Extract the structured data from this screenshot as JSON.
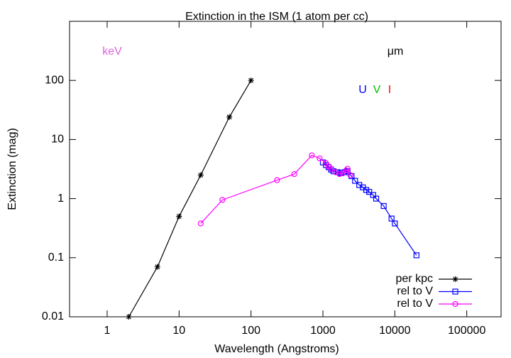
{
  "chart_data": {
    "type": "line",
    "title": "Extinction in the ISM (1 atom per cc)",
    "x_label": "Wavelength (Angstroms)",
    "y_label": "Extinction (mag)",
    "log_x": true,
    "log_y": true,
    "xlim": [
      0.3,
      300000
    ],
    "ylim": [
      0.01,
      1000
    ],
    "xticks": [
      1,
      10,
      100,
      1000,
      10000,
      100000
    ],
    "yticks": [
      0.01,
      0.1,
      1,
      10,
      100
    ],
    "legend": "bottom right",
    "annotations": [
      {
        "text": "keV",
        "color": "#e060e0"
      },
      {
        "text": "μm",
        "color": "#000000"
      },
      {
        "text": "U",
        "color": "#0000ff"
      },
      {
        "text": "V",
        "color": "#00c000"
      },
      {
        "text": "I",
        "color": "#ff0000"
      }
    ],
    "series": [
      {
        "name": "per kpc",
        "color": "#000000",
        "marker": "star",
        "x": [
          2,
          5,
          10,
          20,
          50,
          100
        ],
        "values": [
          0.01,
          0.07,
          0.5,
          2.5,
          24,
          100
        ]
      },
      {
        "name": "rel to V",
        "color": "#0000ff",
        "marker": "square",
        "x": [
          1000,
          1100,
          1200,
          1300,
          1400,
          1600,
          1800,
          2000,
          2200,
          2500,
          2800,
          3200,
          3600,
          4000,
          4400,
          5000,
          5500,
          7000,
          9000,
          10000,
          20000
        ],
        "values": [
          4.1,
          3.7,
          3.4,
          3.1,
          2.9,
          2.8,
          2.7,
          2.8,
          2.9,
          2.4,
          2.0,
          1.7,
          1.55,
          1.4,
          1.3,
          1.15,
          1.0,
          0.75,
          0.46,
          0.38,
          0.11
        ]
      },
      {
        "name": "rel to V",
        "color": "#ff00ff",
        "marker": "circle",
        "x": [
          20,
          40,
          230,
          400,
          700,
          900,
          1100,
          1200,
          1300,
          1500,
          1700,
          1900,
          2100,
          2200,
          2400
        ],
        "values": [
          0.38,
          0.95,
          2.05,
          2.6,
          5.4,
          4.8,
          4.0,
          3.5,
          3.2,
          2.8,
          2.6,
          2.7,
          3.0,
          3.2,
          2.5
        ]
      }
    ]
  }
}
